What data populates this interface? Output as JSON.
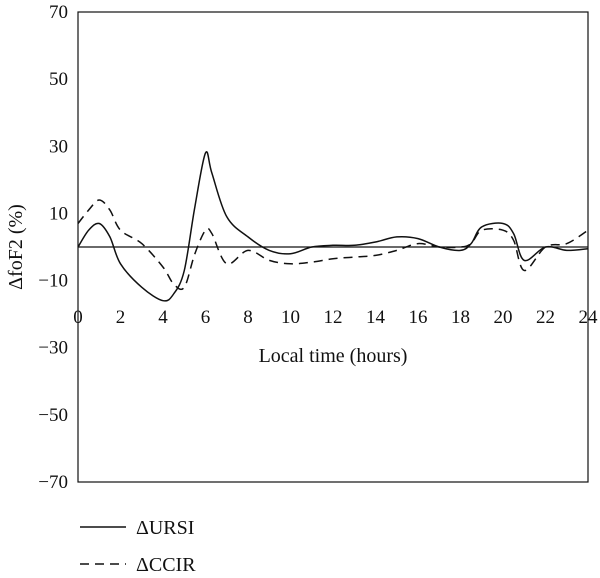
{
  "chart_data": {
    "type": "line",
    "title": "",
    "xlabel": "Local time (hours)",
    "ylabel": "ΔfoF2 (%)",
    "xlim": [
      0,
      24
    ],
    "ylim": [
      -70,
      70
    ],
    "x_ticks": [
      "0",
      "2",
      "4",
      "6",
      "8",
      "10",
      "12",
      "14",
      "16",
      "18",
      "20",
      "22",
      "24"
    ],
    "y_ticks": [
      "70",
      "50",
      "30",
      "10",
      "-10",
      "-30",
      "-50",
      "-70"
    ],
    "x_tick_values": [
      0,
      2,
      4,
      6,
      8,
      10,
      12,
      14,
      16,
      18,
      20,
      22,
      24
    ],
    "y_tick_values": [
      70,
      50,
      30,
      10,
      -10,
      -30,
      -50,
      -70
    ],
    "zero_line": true,
    "grid": false,
    "legend_placement": "bottom-left",
    "series": [
      {
        "name": "ΔURSI",
        "dash": "solid",
        "color": "#111111",
        "x": [
          0,
          0.5,
          1,
          1.5,
          2,
          3,
          4,
          4.5,
          5,
          5.5,
          6,
          6.3,
          7,
          8,
          9,
          10,
          11,
          12,
          13,
          14,
          15,
          16,
          17,
          18,
          18.5,
          19,
          20,
          20.5,
          21,
          22,
          23,
          24
        ],
        "y": [
          0,
          5,
          7,
          3,
          -5,
          -12,
          -16,
          -14,
          -7,
          12,
          28,
          22,
          9,
          3,
          -1,
          -2,
          0,
          0.5,
          0.5,
          1.5,
          3,
          2.5,
          0,
          -1,
          1,
          6,
          7,
          4,
          -4,
          0,
          -1,
          -0.5
        ]
      },
      {
        "name": "ΔCCIR",
        "dash": "dashed",
        "color": "#111111",
        "x": [
          0,
          0.5,
          1,
          1.5,
          2,
          3,
          4,
          4.5,
          5,
          5.5,
          6,
          6.3,
          7,
          8,
          9,
          10,
          11,
          12,
          13,
          14,
          15,
          16,
          17,
          18,
          18.5,
          19,
          20,
          20.5,
          21,
          22,
          23,
          24
        ],
        "y": [
          7,
          11,
          14,
          11,
          5,
          1,
          -6,
          -11,
          -12,
          -2,
          5,
          4,
          -5,
          -1,
          -4,
          -5,
          -4.5,
          -3.5,
          -3,
          -2.5,
          -1,
          1,
          0,
          0,
          1,
          5,
          5,
          2,
          -7,
          0,
          1,
          5
        ]
      }
    ]
  }
}
